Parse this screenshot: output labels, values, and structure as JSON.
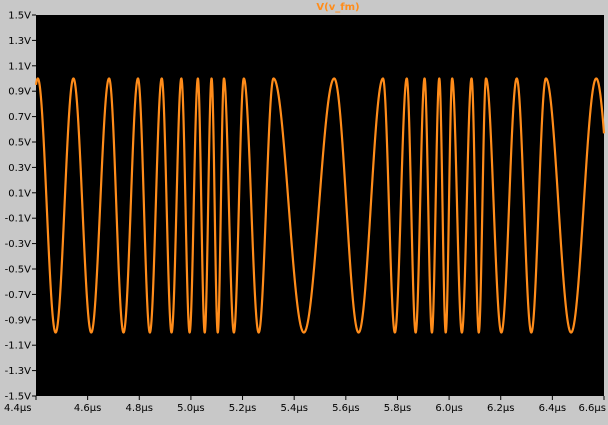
{
  "chart_data": {
    "type": "line",
    "title": "V(v_fm)",
    "xlabel": "",
    "ylabel": "",
    "xlim": [
      4.4,
      6.6
    ],
    "ylim": [
      -1.5,
      1.5
    ],
    "x_unit": "µs",
    "y_unit": "V",
    "x_ticks": [
      "4.4µs",
      "4.6µs",
      "4.8µs",
      "5.0µs",
      "5.2µs",
      "5.4µs",
      "5.6µs",
      "5.8µs",
      "6.0µs",
      "6.2µs",
      "6.4µs",
      "6.6µs"
    ],
    "y_ticks": [
      "1.5V",
      "1.3V",
      "1.1V",
      "0.9V",
      "0.7V",
      "0.5V",
      "0.3V",
      "0.1V",
      "-0.1V",
      "-0.3V",
      "-0.5V",
      "-0.7V",
      "-0.9V",
      "-1.1V",
      "-1.3V",
      "-1.5V"
    ],
    "grid": false,
    "background_color": "#000000",
    "frame_color": "#c8c8c8",
    "series_color": "#ff8c1a",
    "series": [
      {
        "name": "V(v_fm)",
        "description": "FM waveform, amplitude 1 V; local frequency rises then falls",
        "amplitude": 1.0,
        "peaks_x": [
          4.545,
          4.683,
          4.795,
          4.887,
          4.963,
          5.027,
          5.08,
          5.128,
          5.205,
          5.32,
          5.555,
          5.744,
          5.836,
          5.905,
          5.962,
          6.012,
          6.087,
          6.143,
          6.262,
          6.375,
          6.57
        ]
      }
    ]
  }
}
